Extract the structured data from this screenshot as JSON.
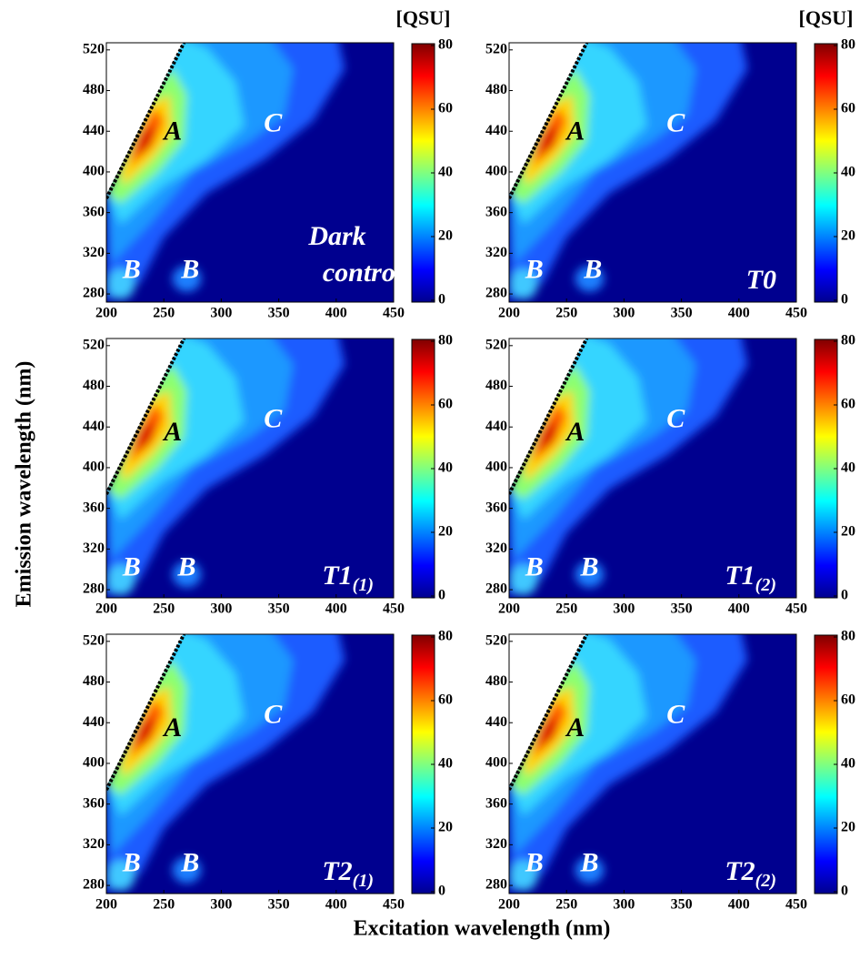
{
  "figure": {
    "xlabel": "Excitation wavelength (nm)",
    "ylabel": "Emission wavelength (nm)"
  },
  "chart_data": [
    {
      "type": "contour",
      "colormap": "jet",
      "colorbar_label": "[QSU]",
      "panel_label": [
        "Dark",
        "control"
      ],
      "xlim": [
        200,
        450
      ],
      "xticks": [
        200,
        250,
        300,
        350,
        400,
        450
      ],
      "ylim": [
        272,
        527
      ],
      "yticks": [
        280,
        320,
        360,
        400,
        440,
        480,
        520
      ],
      "zlim": [
        0,
        80
      ],
      "zticks": [
        0,
        20,
        40,
        60,
        80
      ],
      "annotations": [
        {
          "text": "A",
          "x": 258,
          "y": 438,
          "color": "#000000"
        },
        {
          "text": "C",
          "x": 345,
          "y": 446,
          "color": "#ffffff"
        },
        {
          "text": "B",
          "x": 222,
          "y": 302,
          "color": "#ffffff"
        },
        {
          "text": "B",
          "x": 273,
          "y": 302,
          "color": "#ffffff"
        }
      ]
    },
    {
      "type": "contour",
      "colormap": "jet",
      "colorbar_label": "[QSU]",
      "panel_label": "T0",
      "xlim": [
        200,
        450
      ],
      "xticks": [
        200,
        250,
        300,
        350,
        400,
        450
      ],
      "ylim": [
        272,
        527
      ],
      "yticks": [
        280,
        320,
        360,
        400,
        440,
        480,
        520
      ],
      "zlim": [
        0,
        80
      ],
      "zticks": [
        0,
        20,
        40,
        60,
        80
      ],
      "annotations": [
        {
          "text": "A",
          "x": 258,
          "y": 438,
          "color": "#000000"
        },
        {
          "text": "C",
          "x": 345,
          "y": 446,
          "color": "#ffffff"
        },
        {
          "text": "B",
          "x": 222,
          "y": 302,
          "color": "#ffffff"
        },
        {
          "text": "B",
          "x": 273,
          "y": 302,
          "color": "#ffffff"
        }
      ]
    },
    {
      "type": "contour",
      "colormap": "jet",
      "panel_label": "T1",
      "panel_label_sub": "(1)",
      "xlim": [
        200,
        450
      ],
      "xticks": [
        200,
        250,
        300,
        350,
        400,
        450
      ],
      "ylim": [
        272,
        527
      ],
      "yticks": [
        280,
        320,
        360,
        400,
        440,
        480,
        520
      ],
      "zlim": [
        0,
        80
      ],
      "zticks": [
        0,
        20,
        40,
        60,
        80
      ],
      "annotations": [
        {
          "text": "A",
          "x": 258,
          "y": 433,
          "color": "#000000"
        },
        {
          "text": "C",
          "x": 345,
          "y": 446,
          "color": "#ffffff"
        },
        {
          "text": "B",
          "x": 222,
          "y": 300,
          "color": "#ffffff"
        },
        {
          "text": "B",
          "x": 270,
          "y": 300,
          "color": "#ffffff"
        }
      ]
    },
    {
      "type": "contour",
      "colormap": "jet",
      "panel_label": "T1",
      "panel_label_sub": "(2)",
      "xlim": [
        200,
        450
      ],
      "xticks": [
        200,
        250,
        300,
        350,
        400,
        450
      ],
      "ylim": [
        272,
        527
      ],
      "yticks": [
        280,
        320,
        360,
        400,
        440,
        480,
        520
      ],
      "zlim": [
        0,
        80
      ],
      "zticks": [
        0,
        20,
        40,
        60,
        80
      ],
      "annotations": [
        {
          "text": "A",
          "x": 258,
          "y": 433,
          "color": "#000000"
        },
        {
          "text": "C",
          "x": 345,
          "y": 446,
          "color": "#ffffff"
        },
        {
          "text": "B",
          "x": 222,
          "y": 300,
          "color": "#ffffff"
        },
        {
          "text": "B",
          "x": 270,
          "y": 300,
          "color": "#ffffff"
        }
      ]
    },
    {
      "type": "contour",
      "colormap": "jet",
      "panel_label": "T2",
      "panel_label_sub": "(1)",
      "xlim": [
        200,
        450
      ],
      "xticks": [
        200,
        250,
        300,
        350,
        400,
        450
      ],
      "ylim": [
        272,
        527
      ],
      "yticks": [
        280,
        320,
        360,
        400,
        440,
        480,
        520
      ],
      "zlim": [
        0,
        80
      ],
      "zticks": [
        0,
        20,
        40,
        60,
        80
      ],
      "annotations": [
        {
          "text": "A",
          "x": 258,
          "y": 433,
          "color": "#000000"
        },
        {
          "text": "C",
          "x": 345,
          "y": 446,
          "color": "#ffffff"
        },
        {
          "text": "B",
          "x": 222,
          "y": 300,
          "color": "#ffffff"
        },
        {
          "text": "B",
          "x": 273,
          "y": 300,
          "color": "#ffffff"
        }
      ]
    },
    {
      "type": "contour",
      "colormap": "jet",
      "panel_label": "T2",
      "panel_label_sub": "(2)",
      "xlim": [
        200,
        450
      ],
      "xticks": [
        200,
        250,
        300,
        350,
        400,
        450
      ],
      "ylim": [
        272,
        527
      ],
      "yticks": [
        280,
        320,
        360,
        400,
        440,
        480,
        520
      ],
      "zlim": [
        0,
        80
      ],
      "zticks": [
        0,
        20,
        40,
        60,
        80
      ],
      "annotations": [
        {
          "text": "A",
          "x": 258,
          "y": 433,
          "color": "#000000"
        },
        {
          "text": "C",
          "x": 345,
          "y": 446,
          "color": "#ffffff"
        },
        {
          "text": "B",
          "x": 222,
          "y": 300,
          "color": "#ffffff"
        },
        {
          "text": "B",
          "x": 270,
          "y": 300,
          "color": "#ffffff"
        }
      ]
    }
  ]
}
